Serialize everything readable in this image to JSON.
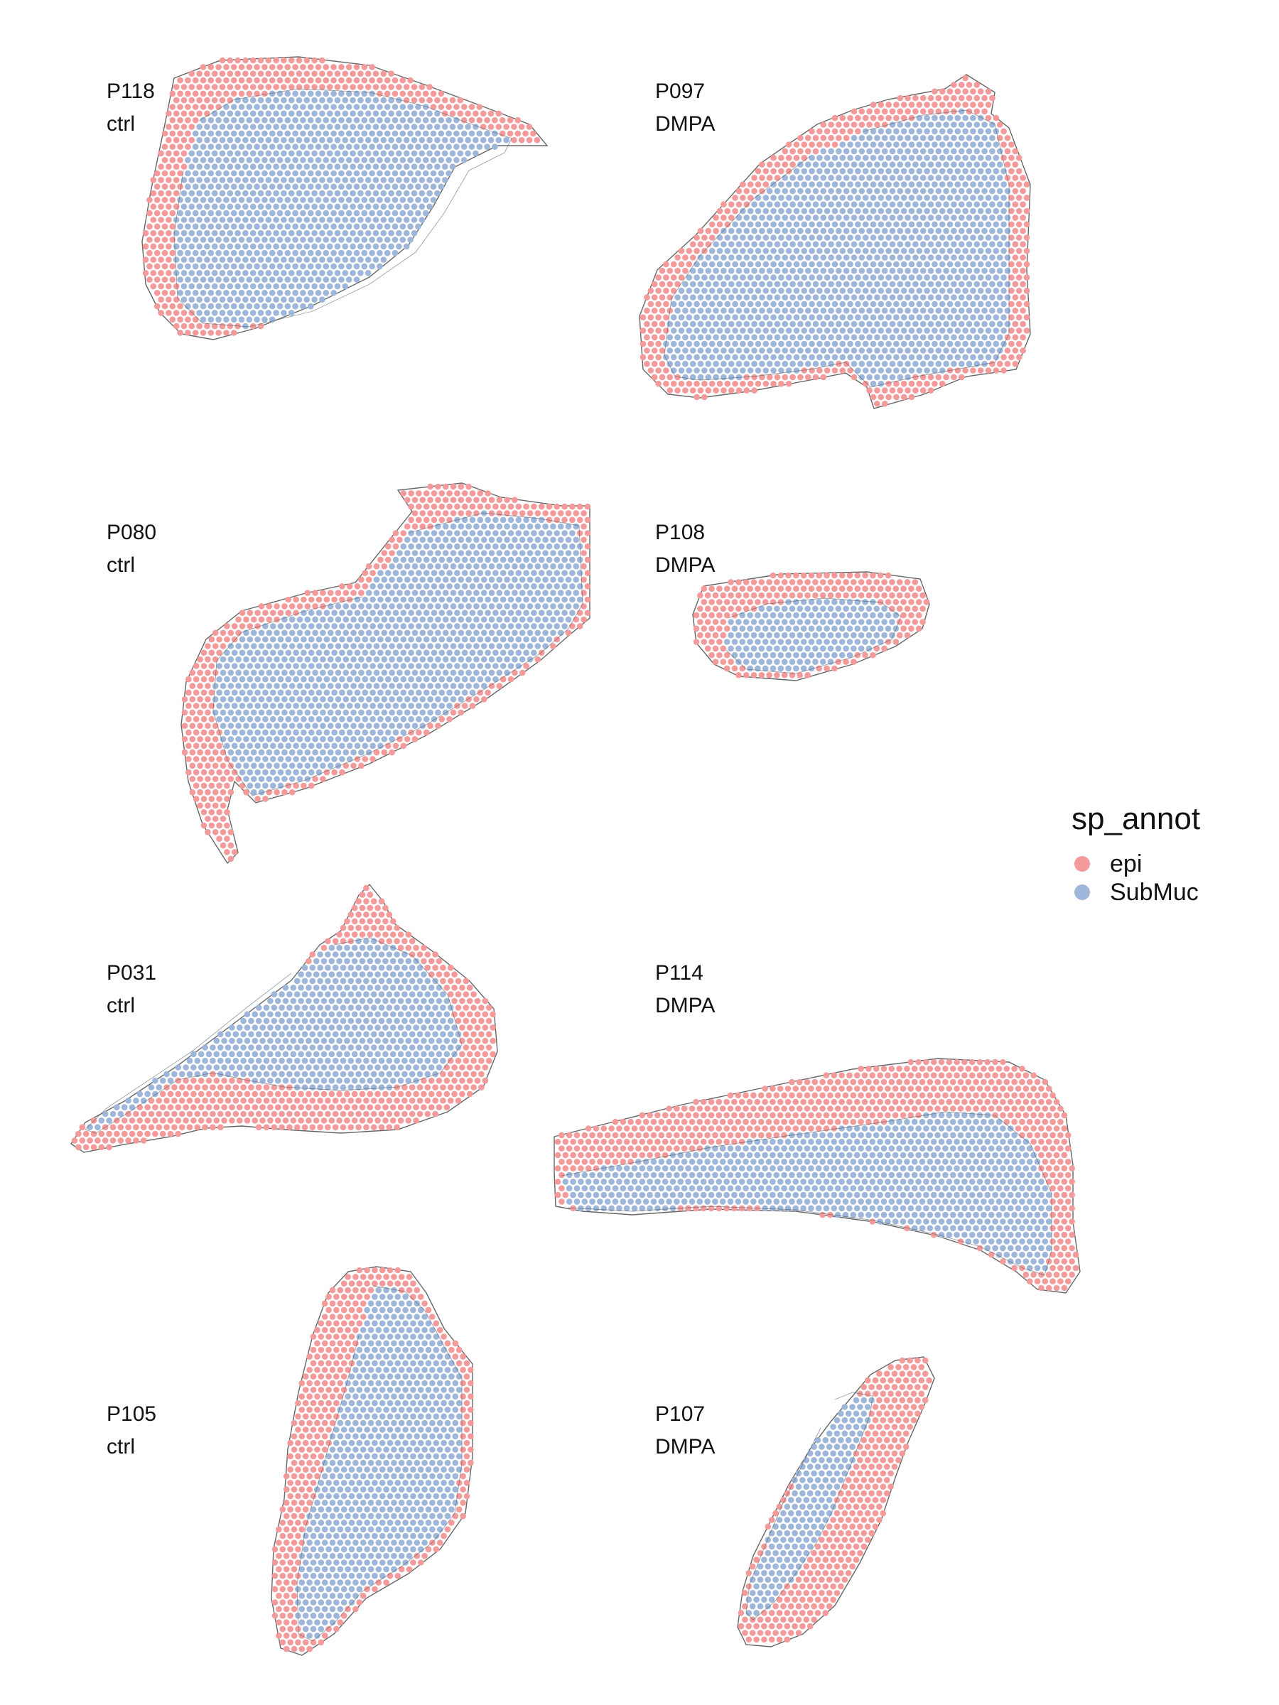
{
  "legend": {
    "title": "sp_annot",
    "items": [
      {
        "label": "epi",
        "color": "#f49a9a"
      },
      {
        "label": "SubMuc",
        "color": "#9db6d9"
      }
    ]
  },
  "colors": {
    "epi": "#f49a9a",
    "submucosa": "#9db6d9",
    "outline": "#666666"
  },
  "panels": [
    {
      "sample": "P118",
      "condition": "ctrl"
    },
    {
      "sample": "P097",
      "condition": "DMPA"
    },
    {
      "sample": "P080",
      "condition": "ctrl"
    },
    {
      "sample": "P108",
      "condition": "DMPA"
    },
    {
      "sample": "P031",
      "condition": "ctrl"
    },
    {
      "sample": "P114",
      "condition": "DMPA"
    },
    {
      "sample": "P105",
      "condition": "ctrl"
    },
    {
      "sample": "P107",
      "condition": "DMPA"
    }
  ]
}
